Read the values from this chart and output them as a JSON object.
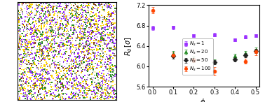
{
  "title": "",
  "xlabel": "$\\phi_s$",
  "ylabel": "$R_g\\,[\\sigma]$",
  "ylim": [
    5.6,
    7.2
  ],
  "yticks": [
    5.6,
    6.0,
    6.4,
    6.8,
    7.2
  ],
  "xlim": [
    -0.02,
    0.52
  ],
  "xticks": [
    0.0,
    0.1,
    0.2,
    0.3,
    0.4,
    0.5
  ],
  "series": {
    "Ns1": {
      "label": "$N_s = 1$",
      "color": "#9B30FF",
      "marker": "s",
      "phi": [
        0.0,
        0.1,
        0.2,
        0.3,
        0.4,
        0.45,
        0.5
      ],
      "Rg": [
        6.75,
        6.76,
        6.6,
        6.62,
        6.52,
        6.58,
        6.6
      ],
      "err": [
        0.04,
        0.04,
        0.03,
        0.03,
        0.03,
        0.03,
        0.03
      ]
    },
    "Ns20": {
      "label": "$N_s = 20$",
      "color": "#228B22",
      "marker": "^",
      "phi": [
        0.1,
        0.2,
        0.3,
        0.4,
        0.45,
        0.5
      ],
      "Rg": [
        6.25,
        6.15,
        6.1,
        6.2,
        6.26,
        6.33
      ],
      "err": [
        0.05,
        0.04,
        0.04,
        0.04,
        0.04,
        0.04
      ]
    },
    "Ns50": {
      "label": "$N_s = 50$",
      "color": "#222222",
      "marker": "D",
      "phi": [
        0.1,
        0.2,
        0.3,
        0.4,
        0.45,
        0.5
      ],
      "Rg": [
        6.2,
        6.12,
        6.08,
        6.14,
        6.22,
        6.3
      ],
      "err": [
        0.05,
        0.04,
        0.04,
        0.04,
        0.04,
        0.04
      ]
    },
    "Ns100": {
      "label": "$N_s = 100$",
      "color": "#FF4500",
      "marker": "o",
      "phi": [
        0.0,
        0.1,
        0.2,
        0.3,
        0.45,
        0.5
      ],
      "Rg": [
        7.1,
        6.22,
        6.12,
        5.9,
        6.1,
        6.28
      ],
      "err": [
        0.06,
        0.05,
        0.04,
        0.08,
        0.05,
        0.06
      ]
    }
  },
  "markersize": 3.5,
  "capsize": 1.5,
  "linewidth": 0.6,
  "bead_colors": [
    "#FFD700",
    "#9B30FF",
    "#228B22",
    "#808080",
    "#8B4513"
  ],
  "bead_colors_full": [
    "#FFD700",
    "#9B30FF",
    "#228B22",
    "#808080",
    "#8B4513",
    "#FFD700",
    "#9B30FF",
    "#228B22",
    "#808080",
    "#8B4513"
  ],
  "n_beads": 3000,
  "bead_size": 1.5
}
